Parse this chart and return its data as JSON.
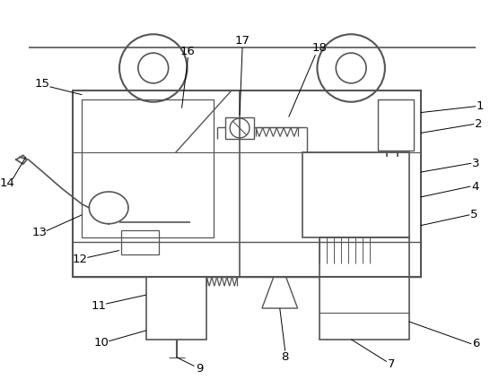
{
  "bg_color": "#ffffff",
  "line_color": "#555555",
  "label_color": "#000000",
  "label_fontsize": 9.5,
  "fig_width": 5.56,
  "fig_height": 4.23,
  "dpi": 100
}
